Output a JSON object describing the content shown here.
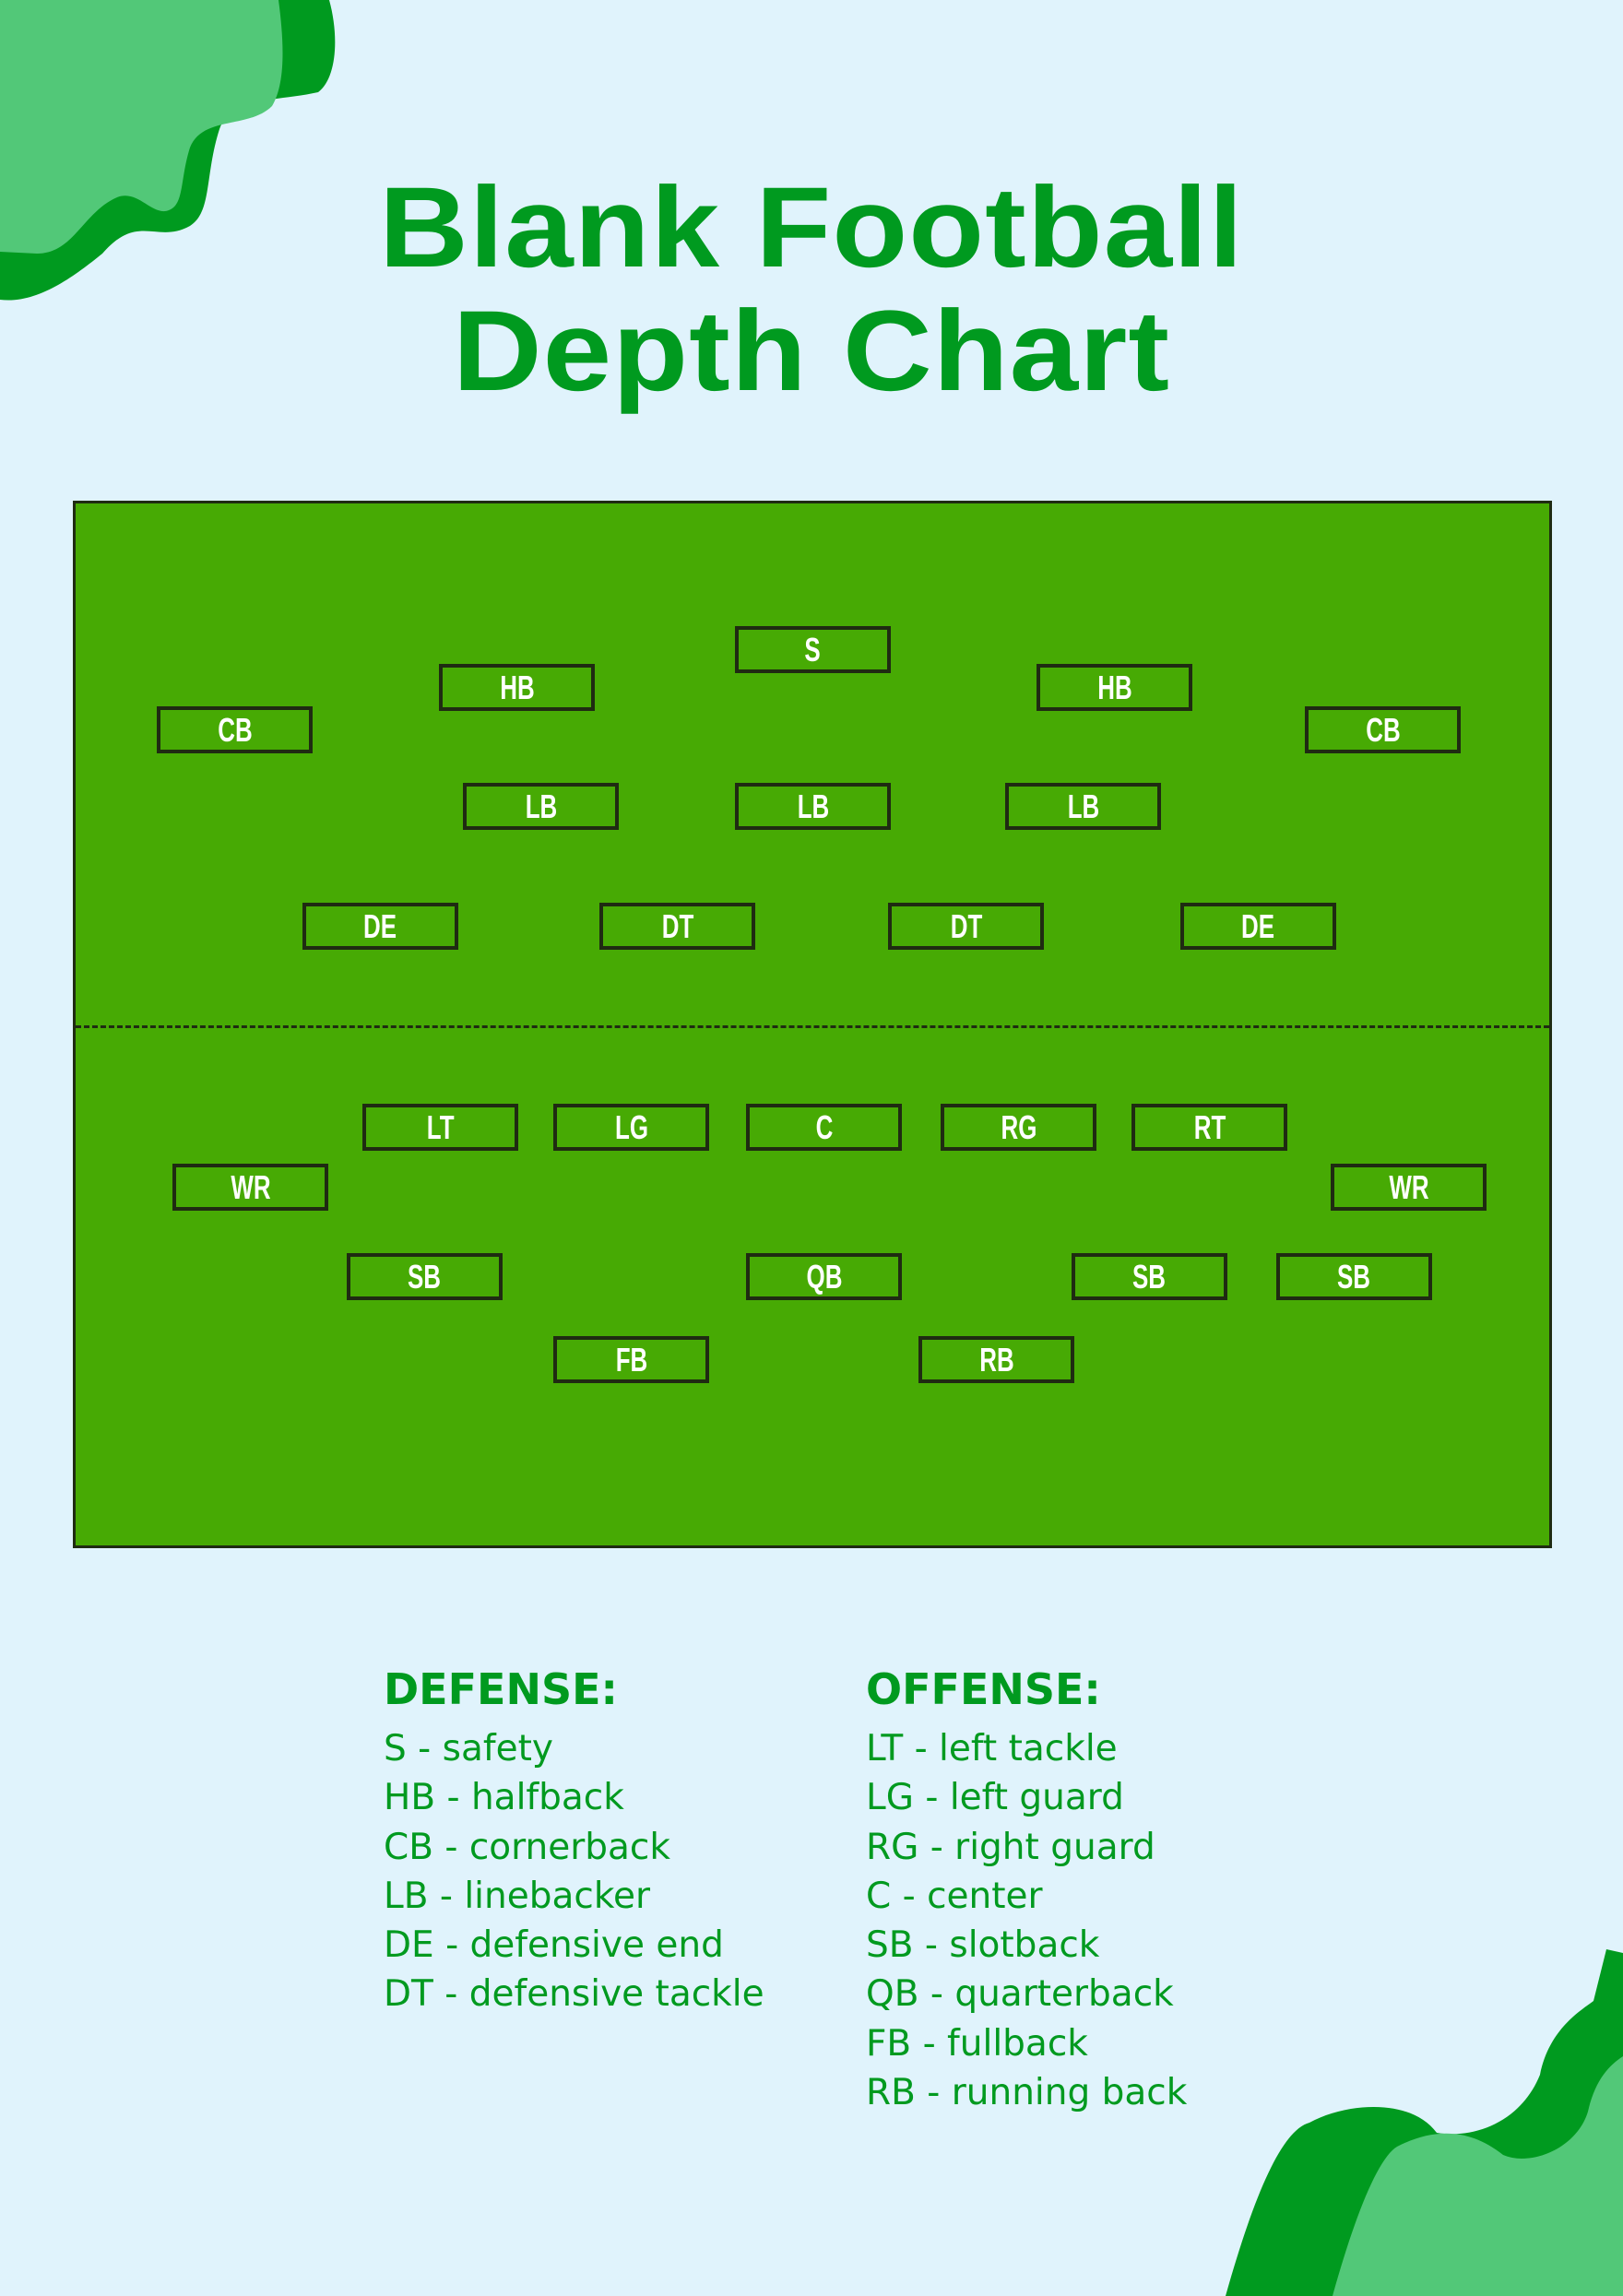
{
  "title": {
    "line1": "Blank Football",
    "line2": "Depth Chart"
  },
  "colors": {
    "background": "#e0f3fc",
    "field": "#47aa04",
    "accent": "#009a1f",
    "accent_light": "#52c878",
    "outline": "#1f2b12"
  },
  "field": {
    "defense": [
      {
        "label": "S"
      },
      {
        "label": "HB"
      },
      {
        "label": "HB"
      },
      {
        "label": "CB"
      },
      {
        "label": "CB"
      },
      {
        "label": "LB"
      },
      {
        "label": "LB"
      },
      {
        "label": "LB"
      },
      {
        "label": "DE"
      },
      {
        "label": "DT"
      },
      {
        "label": "DT"
      },
      {
        "label": "DE"
      }
    ],
    "offense": [
      {
        "label": "LT"
      },
      {
        "label": "LG"
      },
      {
        "label": "C"
      },
      {
        "label": "RG"
      },
      {
        "label": "RT"
      },
      {
        "label": "WR"
      },
      {
        "label": "WR"
      },
      {
        "label": "SB"
      },
      {
        "label": "QB"
      },
      {
        "label": "SB"
      },
      {
        "label": "SB"
      },
      {
        "label": "FB"
      },
      {
        "label": "RB"
      }
    ]
  },
  "legend": {
    "defense": {
      "heading": "DEFENSE:",
      "items": [
        "S - safety",
        "HB - halfback",
        "CB - cornerback",
        "LB - linebacker",
        "DE - defensive end",
        "DT - defensive tackle"
      ]
    },
    "offense": {
      "heading": "OFFENSE:",
      "items": [
        "LT - left tackle",
        "LG - left guard",
        "RG - right guard",
        "C - center",
        "SB - slotback",
        "QB - quarterback",
        "FB - fullback",
        "RB - running back"
      ]
    }
  }
}
